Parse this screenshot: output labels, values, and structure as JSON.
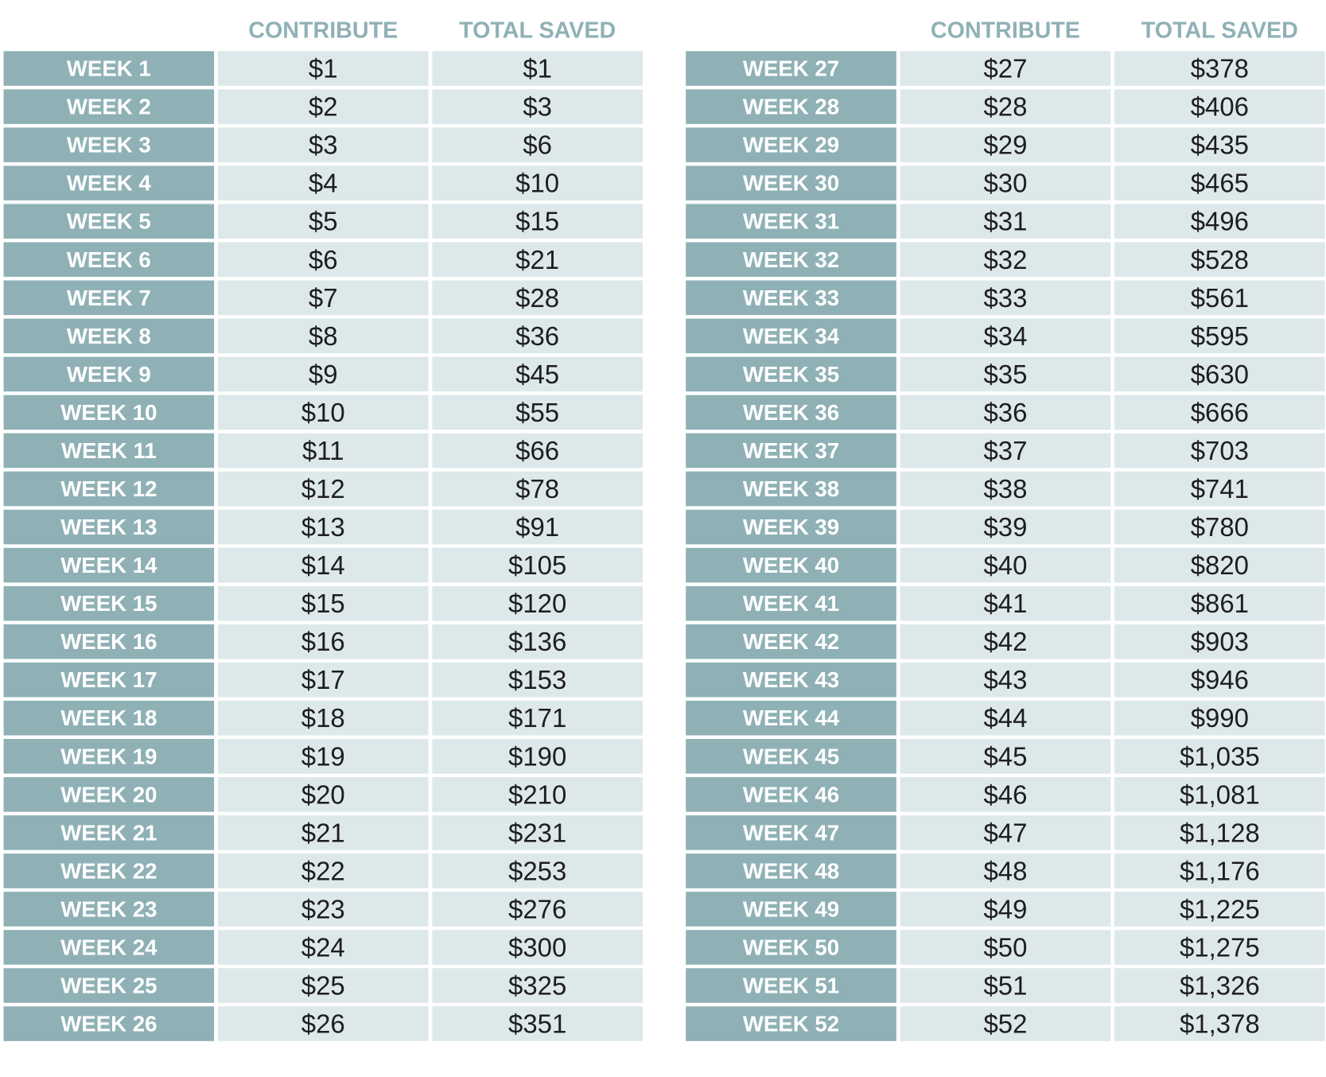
{
  "tables": [
    {
      "header": [
        "CONTRIBUTE",
        "TOTAL SAVED"
      ],
      "rows": [
        [
          "WEEK 1",
          "$1",
          "$1"
        ],
        [
          "WEEK 2",
          "$2",
          "$3"
        ],
        [
          "WEEK 3",
          "$3",
          "$6"
        ],
        [
          "WEEK 4",
          "$4",
          "$10"
        ],
        [
          "WEEK 5",
          "$5",
          "$15"
        ],
        [
          "WEEK 6",
          "$6",
          "$21"
        ],
        [
          "WEEK 7",
          "$7",
          "$28"
        ],
        [
          "WEEK 8",
          "$8",
          "$36"
        ],
        [
          "WEEK 9",
          "$9",
          "$45"
        ],
        [
          "WEEK 10",
          "$10",
          "$55"
        ],
        [
          "WEEK 11",
          "$11",
          "$66"
        ],
        [
          "WEEK 12",
          "$12",
          "$78"
        ],
        [
          "WEEK 13",
          "$13",
          "$91"
        ],
        [
          "WEEK 14",
          "$14",
          "$105"
        ],
        [
          "WEEK 15",
          "$15",
          "$120"
        ],
        [
          "WEEK 16",
          "$16",
          "$136"
        ],
        [
          "WEEK 17",
          "$17",
          "$153"
        ],
        [
          "WEEK 18",
          "$18",
          "$171"
        ],
        [
          "WEEK 19",
          "$19",
          "$190"
        ],
        [
          "WEEK 20",
          "$20",
          "$210"
        ],
        [
          "WEEK 21",
          "$21",
          "$231"
        ],
        [
          "WEEK 22",
          "$22",
          "$253"
        ],
        [
          "WEEK 23",
          "$23",
          "$276"
        ],
        [
          "WEEK 24",
          "$24",
          "$300"
        ],
        [
          "WEEK 25",
          "$25",
          "$325"
        ],
        [
          "WEEK 26",
          "$26",
          "$351"
        ]
      ]
    },
    {
      "header": [
        "CONTRIBUTE",
        "TOTAL SAVED"
      ],
      "rows": [
        [
          "WEEK 27",
          "$27",
          "$378"
        ],
        [
          "WEEK 28",
          "$28",
          "$406"
        ],
        [
          "WEEK 29",
          "$29",
          "$435"
        ],
        [
          "WEEK 30",
          "$30",
          "$465"
        ],
        [
          "WEEK 31",
          "$31",
          "$496"
        ],
        [
          "WEEK 32",
          "$32",
          "$528"
        ],
        [
          "WEEK 33",
          "$33",
          "$561"
        ],
        [
          "WEEK 34",
          "$34",
          "$595"
        ],
        [
          "WEEK 35",
          "$35",
          "$630"
        ],
        [
          "WEEK 36",
          "$36",
          "$666"
        ],
        [
          "WEEK 37",
          "$37",
          "$703"
        ],
        [
          "WEEK 38",
          "$38",
          "$741"
        ],
        [
          "WEEK 39",
          "$39",
          "$780"
        ],
        [
          "WEEK 40",
          "$40",
          "$820"
        ],
        [
          "WEEK 41",
          "$41",
          "$861"
        ],
        [
          "WEEK 42",
          "$42",
          "$903"
        ],
        [
          "WEEK 43",
          "$43",
          "$946"
        ],
        [
          "WEEK 44",
          "$44",
          "$990"
        ],
        [
          "WEEK 45",
          "$45",
          "$1,035"
        ],
        [
          "WEEK 46",
          "$46",
          "$1,081"
        ],
        [
          "WEEK 47",
          "$47",
          "$1,128"
        ],
        [
          "WEEK 48",
          "$48",
          "$1,176"
        ],
        [
          "WEEK 49",
          "$49",
          "$1,225"
        ],
        [
          "WEEK 50",
          "$50",
          "$1,275"
        ],
        [
          "WEEK 51",
          "$51",
          "$1,326"
        ],
        [
          "WEEK 52",
          "$52",
          "$1,378"
        ]
      ]
    }
  ]
}
